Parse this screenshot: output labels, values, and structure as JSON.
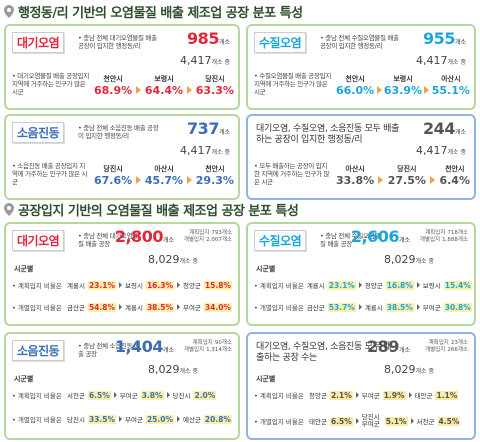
{
  "sections": [
    {
      "title": "행정동/리 기반의 오염물질 배출 제조업 공장 분포 특성",
      "cards": [
        {
          "label": "대기오염",
          "color": "#e0283a",
          "desc": "• 충남 전체 대기오염물질 배출 공장이 입지한 행정동/리",
          "count": "985",
          "count_unit": "개소",
          "total": "4,417",
          "total_unit": "개소 중",
          "sub_desc": "• 대기오염물질 배출 공장입지 지역에 거주하는 인구가 많은 시군",
          "ranks": [
            {
              "place": "천안시",
              "value": "68.9%"
            },
            {
              "place": "보령시",
              "value": "64.4%"
            },
            {
              "place": "당진시",
              "value": "63.3%"
            }
          ]
        },
        {
          "label": "수질오염",
          "color": "#1ba6d9",
          "desc": "• 충남 전체 수질오염물질 배출 공장이 입지한 행정동/리",
          "count": "955",
          "count_unit": "개소",
          "total": "4,417",
          "total_unit": "개소 중",
          "sub_desc": "• 수질오염물질 배출 공장입지 지역에 거주하는 인구가 많은 시군",
          "ranks": [
            {
              "place": "천안시",
              "value": "66.0%"
            },
            {
              "place": "보령시",
              "value": "63.9%"
            },
            {
              "place": "아산시",
              "value": "55.1%"
            }
          ]
        },
        {
          "label": "소음진동",
          "color": "#3c6db6",
          "desc": "• 충남 전체 소음진동 배출 공장이 입지한 행정동/리",
          "count": "737",
          "count_unit": "개소",
          "total": "4,417",
          "total_unit": "개소 중",
          "sub_desc": "• 소음진동 배출 공장입지 지역에 거주하는 인구가 많은 시군",
          "ranks": [
            {
              "place": "당진시",
              "value": "67.6%"
            },
            {
              "place": "아산시",
              "value": "45.7%"
            },
            {
              "place": "천안시",
              "value": "29.3%"
            }
          ]
        },
        {
          "color": "#555555",
          "desc": "대기오염, 수질오염, 소음진동 모두 배출하는 공장이 입지한 행정동/리",
          "count": "244",
          "count_unit": "개소",
          "total": "4,417",
          "total_unit": "개소 중",
          "sub_desc": "• 모두 배출하는 공장이 입지한 지역에 거주하는 인구가 많은 시군",
          "ranks": [
            {
              "place": "아산시",
              "value": "33.8%"
            },
            {
              "place": "당진시",
              "value": "27.5%"
            },
            {
              "place": "천안시",
              "value": "6.4%"
            }
          ]
        }
      ]
    },
    {
      "title": "공장입지 기반의 오염물질 배출 제조업 공장 분포 특성",
      "cards": [
        {
          "label": "대기오염",
          "color": "#e0283a",
          "desc": "• 충남 전체 대기오염물질 배출 공장",
          "count": "2,800",
          "count_unit": "개소",
          "split": [
            {
              "name": "계획입지",
              "value": "793개소"
            },
            {
              "name": "개별입지",
              "value": "2,007개소"
            }
          ],
          "total": "8,029",
          "total_unit": "개소 중",
          "group": "시군별",
          "rows": [
            {
              "name": "• 계획입지 비율은",
              "ranks": [
                {
                  "place": "계룡시",
                  "value": "23.1%"
                },
                {
                  "place": "보령시",
                  "value": "16.3%"
                },
                {
                  "place": "청양군",
                  "value": "15.8%"
                }
              ]
            },
            {
              "name": "• 개별입지 비율은",
              "ranks": [
                {
                  "place": "금산군",
                  "value": "54.8%"
                },
                {
                  "place": "계룡시",
                  "value": "38.5%"
                },
                {
                  "place": "부여군",
                  "value": "34.0%"
                }
              ]
            }
          ]
        },
        {
          "label": "수질오염",
          "color": "#1ba6d9",
          "desc": "• 충남 전체 수질오염물질 배출 공장",
          "count": "2,606",
          "count_unit": "개소",
          "split": [
            {
              "name": "계획입지",
              "value": "718개소"
            },
            {
              "name": "개별입지",
              "value": "1,888개소"
            }
          ],
          "total": "8,029",
          "total_unit": "개소 중",
          "group": "시군별",
          "rows": [
            {
              "name": "• 계획입지 비율은",
              "ranks": [
                {
                  "place": "계룡시",
                  "value": "23.1%"
                },
                {
                  "place": "청양군",
                  "value": "16.8%"
                },
                {
                  "place": "보령시",
                  "value": "15.4%"
                }
              ]
            },
            {
              "name": "• 개별입지 비율은",
              "ranks": [
                {
                  "place": "금산군",
                  "value": "53.7%"
                },
                {
                  "place": "계룡시",
                  "value": "38.5%"
                },
                {
                  "place": "부여군",
                  "value": "30.8%"
                }
              ]
            }
          ]
        },
        {
          "label": "소음진동",
          "color": "#3c6db6",
          "desc": "• 충남 전체 소음진동 배출 공장",
          "count": "1,404",
          "count_unit": "개소",
          "split": [
            {
              "name": "계획입지",
              "value": "90개소"
            },
            {
              "name": "개별입지",
              "value": "1,314개소"
            }
          ],
          "total": "8,029",
          "total_unit": "개소 중",
          "group": "시군별",
          "rows": [
            {
              "name": "• 계획입지 비율은",
              "ranks": [
                {
                  "place": "서천군",
                  "value": "6.5%"
                },
                {
                  "place": "부여군",
                  "value": "3.8%"
                },
                {
                  "place": "당진시",
                  "value": "2.0%"
                }
              ]
            },
            {
              "name": "• 개별입지 비율은",
              "ranks": [
                {
                  "place": "당진시",
                  "value": "33.5%"
                },
                {
                  "place": "부여군",
                  "value": "25.0%"
                },
                {
                  "place": "예산군",
                  "value": "20.8%"
                }
              ]
            }
          ]
        },
        {
          "color": "#555555",
          "desc": "대기오염, 수질오염, 소음진동 모두 배출하는 공장 수는",
          "count": "289",
          "count_unit": "개소",
          "split": [
            {
              "name": "계획입지",
              "value": "23개소"
            },
            {
              "name": "개별입지",
              "value": "266개소"
            }
          ],
          "total": "8,029",
          "total_unit": "개소 중",
          "group": "시군별",
          "rows": [
            {
              "name": "• 계획입지 비율은",
              "ranks": [
                {
                  "place": "청양군",
                  "value": "2.1%"
                },
                {
                  "place": "부여군",
                  "value": "1.9%"
                },
                {
                  "place": "태안군",
                  "value": "1.1%"
                }
              ]
            },
            {
              "name": "• 개별입지 비율은",
              "ranks": [
                {
                  "place": "태안군",
                  "value": "6.5%"
                },
                {
                  "place": "당진시 부여군",
                  "value": "5.1%"
                },
                {
                  "place": "서천군",
                  "value": "4.5%"
                }
              ]
            }
          ]
        }
      ]
    }
  ]
}
